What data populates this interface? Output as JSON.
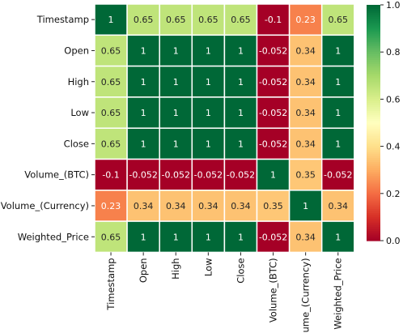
{
  "chart_data": {
    "type": "heatmap",
    "labels": [
      "Timestamp",
      "Open",
      "High",
      "Low",
      "Close",
      "Volume_(BTC)",
      "Volume_(Currency)",
      "Weighted_Price"
    ],
    "values": [
      [
        1,
        0.65,
        0.65,
        0.65,
        0.65,
        -0.1,
        0.23,
        0.65
      ],
      [
        0.65,
        1,
        1,
        1,
        1,
        -0.052,
        0.34,
        1
      ],
      [
        0.65,
        1,
        1,
        1,
        1,
        -0.052,
        0.34,
        1
      ],
      [
        0.65,
        1,
        1,
        1,
        1,
        -0.052,
        0.34,
        1
      ],
      [
        0.65,
        1,
        1,
        1,
        1,
        -0.052,
        0.34,
        1
      ],
      [
        -0.1,
        -0.052,
        -0.052,
        -0.052,
        -0.052,
        1,
        0.35,
        -0.052
      ],
      [
        0.23,
        0.34,
        0.34,
        0.34,
        0.34,
        0.35,
        1,
        0.34
      ],
      [
        0.65,
        1,
        1,
        1,
        1,
        -0.052,
        0.34,
        1
      ]
    ],
    "annotations": [
      [
        "1",
        "0.65",
        "0.65",
        "0.65",
        "0.65",
        "-0.1",
        "0.23",
        "0.65"
      ],
      [
        "0.65",
        "1",
        "1",
        "1",
        "1",
        "-0.052",
        "0.34",
        "1"
      ],
      [
        "0.65",
        "1",
        "1",
        "1",
        "1",
        "-0.052",
        "0.34",
        "1"
      ],
      [
        "0.65",
        "1",
        "1",
        "1",
        "1",
        "-0.052",
        "0.34",
        "1"
      ],
      [
        "0.65",
        "1",
        "1",
        "1",
        "1",
        "-0.052",
        "0.34",
        "1"
      ],
      [
        "-0.1",
        "-0.052",
        "-0.052",
        "-0.052",
        "-0.052",
        "1",
        "0.35",
        "-0.052"
      ],
      [
        "0.23",
        "0.34",
        "0.34",
        "0.34",
        "0.34",
        "0.35",
        "1",
        "0.34"
      ],
      [
        "0.65",
        "1",
        "1",
        "1",
        "1",
        "-0.052",
        "0.34",
        "1"
      ]
    ],
    "colormap": "RdYlGn",
    "vmin": 0.0,
    "vmax": 1.0,
    "colorbar_ticks": [
      "0.0",
      "0.2",
      "0.4",
      "0.6",
      "0.8",
      "1.0"
    ],
    "colorbar_tick_values": [
      0.0,
      0.2,
      0.4,
      0.6,
      0.8,
      1.0
    ]
  }
}
